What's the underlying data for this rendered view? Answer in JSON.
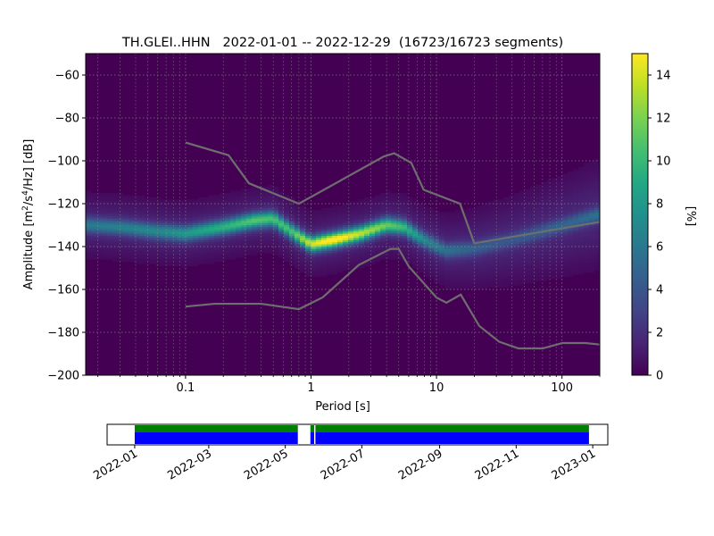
{
  "chart_data": [
    {
      "type": "heatmap",
      "title": "TH.GLEI..HHN   2022-01-01 -- 2022-12-29  (16723/16723 segments)",
      "xlabel": "Period [s]",
      "ylabel_main": "Amplitude [m",
      "ylabel_sup1": "2",
      "ylabel_mid": "/s",
      "ylabel_sup2": "4",
      "ylabel_end": "/Hz] [dB]",
      "x_scale": "log",
      "xlim": [
        0.016,
        200
      ],
      "ylim": [
        -200,
        -50
      ],
      "x_ticks": [
        {
          "value": 0.1,
          "label": "0.1"
        },
        {
          "value": 1,
          "label": "1"
        },
        {
          "value": 10,
          "label": "10"
        },
        {
          "value": 100,
          "label": "100"
        }
      ],
      "y_ticks": [
        {
          "value": -60,
          "label": "−60"
        },
        {
          "value": -80,
          "label": "−80"
        },
        {
          "value": -100,
          "label": "−100"
        },
        {
          "value": -120,
          "label": "−120"
        },
        {
          "value": -140,
          "label": "−140"
        },
        {
          "value": -160,
          "label": "−160"
        },
        {
          "value": -180,
          "label": "−180"
        },
        {
          "value": -200,
          "label": "−200"
        }
      ],
      "grid": true,
      "colorbar": {
        "label": "[%]",
        "range": [
          0,
          15
        ],
        "ticks": [
          {
            "value": 0,
            "label": "0"
          },
          {
            "value": 2,
            "label": "2"
          },
          {
            "value": 4,
            "label": "4"
          },
          {
            "value": 6,
            "label": "6"
          },
          {
            "value": 8,
            "label": "8"
          },
          {
            "value": 10,
            "label": "10"
          },
          {
            "value": 12,
            "label": "12"
          },
          {
            "value": 14,
            "label": "14"
          }
        ],
        "colormap": "viridis"
      },
      "density_ridge": [
        {
          "period": 0.016,
          "db": -130,
          "peak": 4.5
        },
        {
          "period": 0.03,
          "db": -131,
          "peak": 5.0
        },
        {
          "period": 0.06,
          "db": -133,
          "peak": 5.5
        },
        {
          "period": 0.1,
          "db": -134,
          "peak": 6.5
        },
        {
          "period": 0.2,
          "db": -131,
          "peak": 8.0
        },
        {
          "period": 0.35,
          "db": -128,
          "peak": 9.5
        },
        {
          "period": 0.5,
          "db": -127,
          "peak": 9.0
        },
        {
          "period": 0.7,
          "db": -133,
          "peak": 9.0
        },
        {
          "period": 1.0,
          "db": -139,
          "peak": 12.5
        },
        {
          "period": 1.5,
          "db": -137,
          "peak": 14.5
        },
        {
          "period": 2.5,
          "db": -134,
          "peak": 12.0
        },
        {
          "period": 4.0,
          "db": -130,
          "peak": 10.0
        },
        {
          "period": 5.5,
          "db": -131,
          "peak": 8.5
        },
        {
          "period": 8.0,
          "db": -137,
          "peak": 5.5
        },
        {
          "period": 12,
          "db": -142,
          "peak": 4.0
        },
        {
          "period": 20,
          "db": -141,
          "peak": 3.0
        },
        {
          "period": 40,
          "db": -137,
          "peak": 2.5
        },
        {
          "period": 80,
          "db": -132,
          "peak": 3.0
        },
        {
          "period": 200,
          "db": -125,
          "peak": 4.0
        }
      ],
      "series": [
        {
          "x": [
            0.1,
            0.22,
            0.32,
            0.8,
            3.8,
            4.6,
            6.3,
            7.9,
            15.4,
            20,
            200
          ],
          "y": [
            -91.5,
            -97.4,
            -110.5,
            -120,
            -98,
            -96.5,
            -101,
            -113.5,
            -120,
            -138.5,
            -128.5
          ]
        },
        {
          "x": [
            0.1,
            0.17,
            0.4,
            0.8,
            1.24,
            2.4,
            4.3,
            5.0,
            6.0,
            10,
            12,
            15.6,
            21.9,
            31.6,
            45,
            70,
            101,
            154,
            200
          ],
          "y": [
            -168,
            -166.7,
            -166.7,
            -169.2,
            -163.7,
            -148.6,
            -141.1,
            -141.1,
            -149.2,
            -163.8,
            -166.2,
            -162.4,
            -177,
            -184.4,
            -187.5,
            -187.5,
            -185,
            -185,
            -185.7
          ]
        }
      ]
    },
    {
      "type": "timeline",
      "xlim": [
        "2021-12-10",
        "2023-01-13"
      ],
      "x_ticks": [
        {
          "value": "2022-01-01",
          "label": "2022-01"
        },
        {
          "value": "2022-03-01",
          "label": "2022-03"
        },
        {
          "value": "2022-05-01",
          "label": "2022-05"
        },
        {
          "value": "2022-07-01",
          "label": "2022-07"
        },
        {
          "value": "2022-09-01",
          "label": "2022-09"
        },
        {
          "value": "2022-11-01",
          "label": "2022-11"
        },
        {
          "value": "2023-01-01",
          "label": "2023-01"
        }
      ],
      "coverage": [
        {
          "start": "2022-01-01",
          "end": "2022-05-11"
        },
        {
          "start": "2022-05-21",
          "end": "2022-05-24"
        },
        {
          "start": "2022-05-25",
          "end": "2022-12-29"
        }
      ],
      "colors": {
        "top": "#008000",
        "bottom": "#0000ff"
      }
    }
  ]
}
